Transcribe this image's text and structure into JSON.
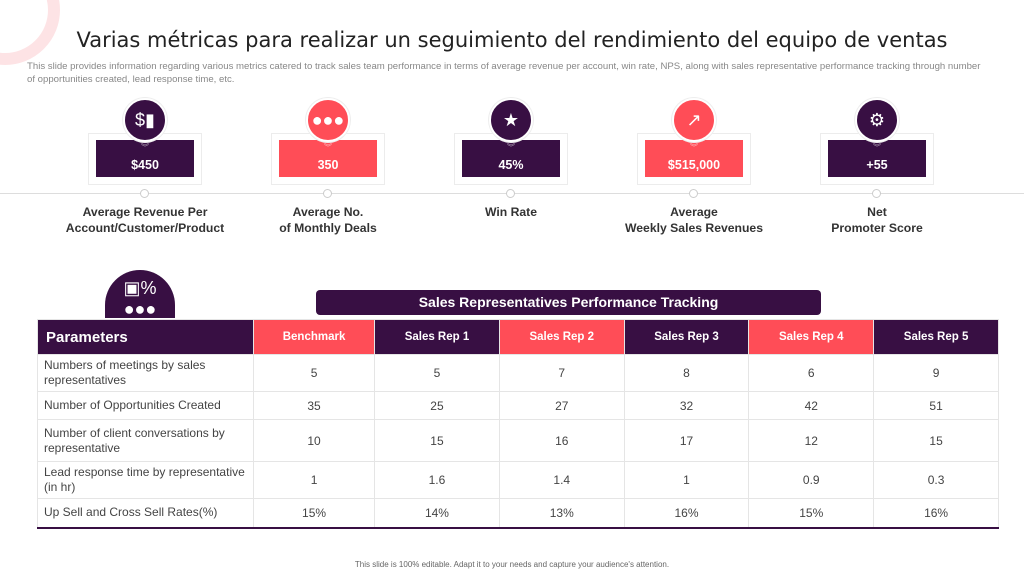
{
  "title": "Varias métricas para realizar un seguimiento del rendimiento del equipo de ventas",
  "subtitle": "This slide provides information regarding various metrics catered to track sales team performance in terms of average revenue per account, win rate, NPS, along with sales representative performance tracking through number of opportunities created, lead response time, etc.",
  "metrics": [
    {
      "value": "$450",
      "label1": "Average Revenue Per",
      "label2": "Account/Customer/Product",
      "icon": "revenue-chart-icon",
      "color": "#380f43"
    },
    {
      "value": "350",
      "label1": "Average No.",
      "label2": "of Monthly Deals",
      "icon": "team-icon",
      "color": "#ff4d57"
    },
    {
      "value": "45%",
      "label1": "Win Rate",
      "label2": "",
      "icon": "document-star-icon",
      "color": "#380f43"
    },
    {
      "value": "$515,000",
      "label1": "Average",
      "label2": "Weekly Sales Revenues",
      "icon": "growth-chart-icon",
      "color": "#ff4d57"
    },
    {
      "value": "+55",
      "label1": "Net",
      "label2": "Promoter Score",
      "icon": "score-settings-icon",
      "color": "#380f43"
    }
  ],
  "table": {
    "banner": "Sales Representatives Performance Tracking",
    "headers": [
      "Parameters",
      "Benchmark",
      "Sales Rep 1",
      "Sales Rep 2",
      "Sales Rep 3",
      "Sales Rep 4",
      "Sales Rep 5"
    ],
    "rows": [
      [
        "Numbers of meetings by sales representatives",
        "5",
        "5",
        "7",
        "8",
        "6",
        "9"
      ],
      [
        "Number of Opportunities Created",
        "35",
        "25",
        "27",
        "32",
        "42",
        "51"
      ],
      [
        "Number of client conversations by representative",
        "10",
        "15",
        "16",
        "17",
        "12",
        "15"
      ],
      [
        "Lead response time by representative (in hr)",
        "1",
        "1.6",
        "1.4",
        "1",
        "0.9",
        "0.3"
      ],
      [
        "Up Sell and Cross Sell Rates(%)",
        "15%",
        "14%",
        "13%",
        "16%",
        "15%",
        "16%"
      ]
    ]
  },
  "footer": "This slide is 100% editable. Adapt it to your needs and capture your audience's attention.",
  "colors": {
    "purple": "#380f43",
    "red": "#ff4d57"
  }
}
